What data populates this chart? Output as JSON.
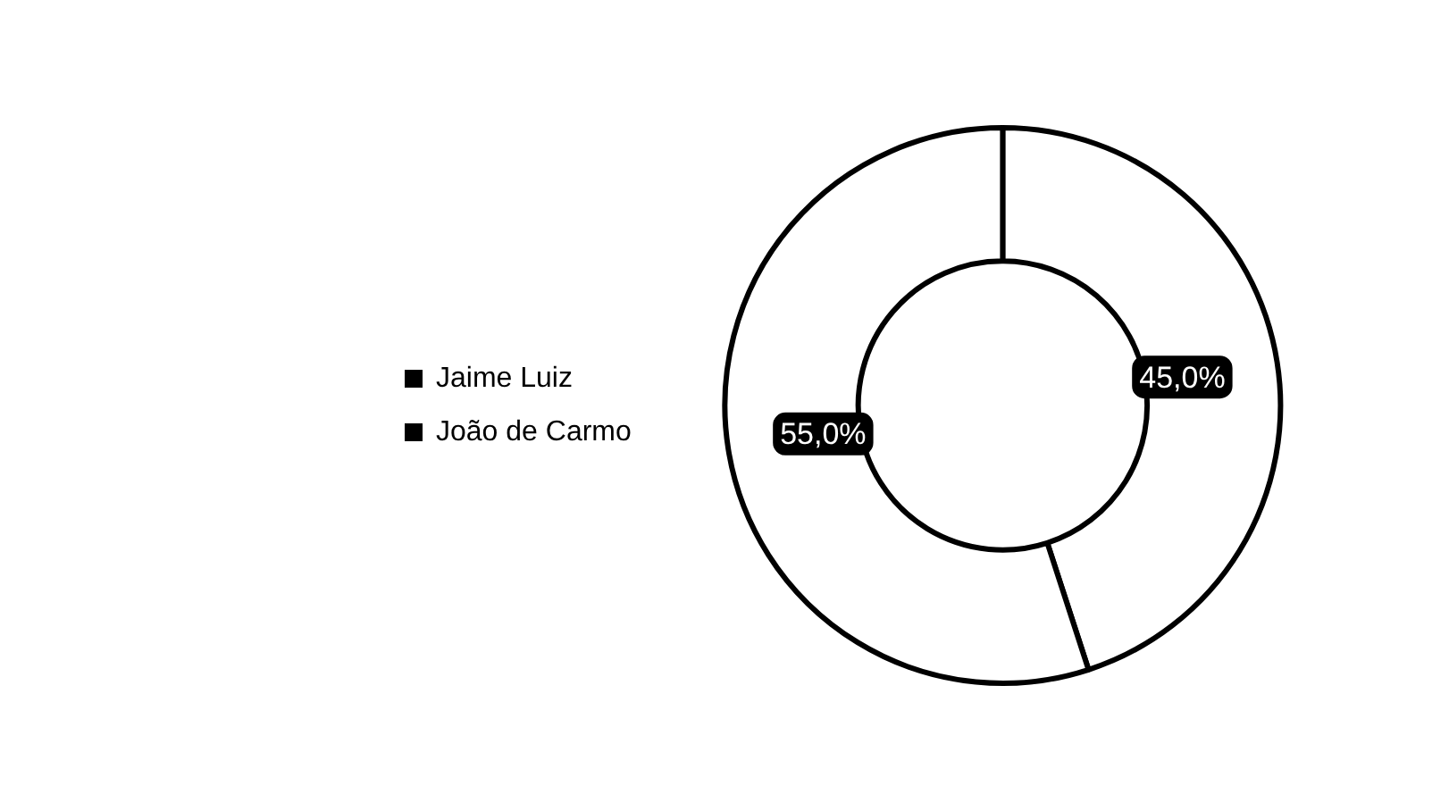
{
  "chart_data": {
    "type": "donut",
    "categories": [
      "Jaime Luiz",
      "João de Carmo"
    ],
    "values": [
      45.0,
      55.0
    ],
    "colors": [
      "#ffffff",
      "#ffffff"
    ],
    "value_labels": [
      "45,0%",
      "55,0%"
    ],
    "legend": "left"
  }
}
